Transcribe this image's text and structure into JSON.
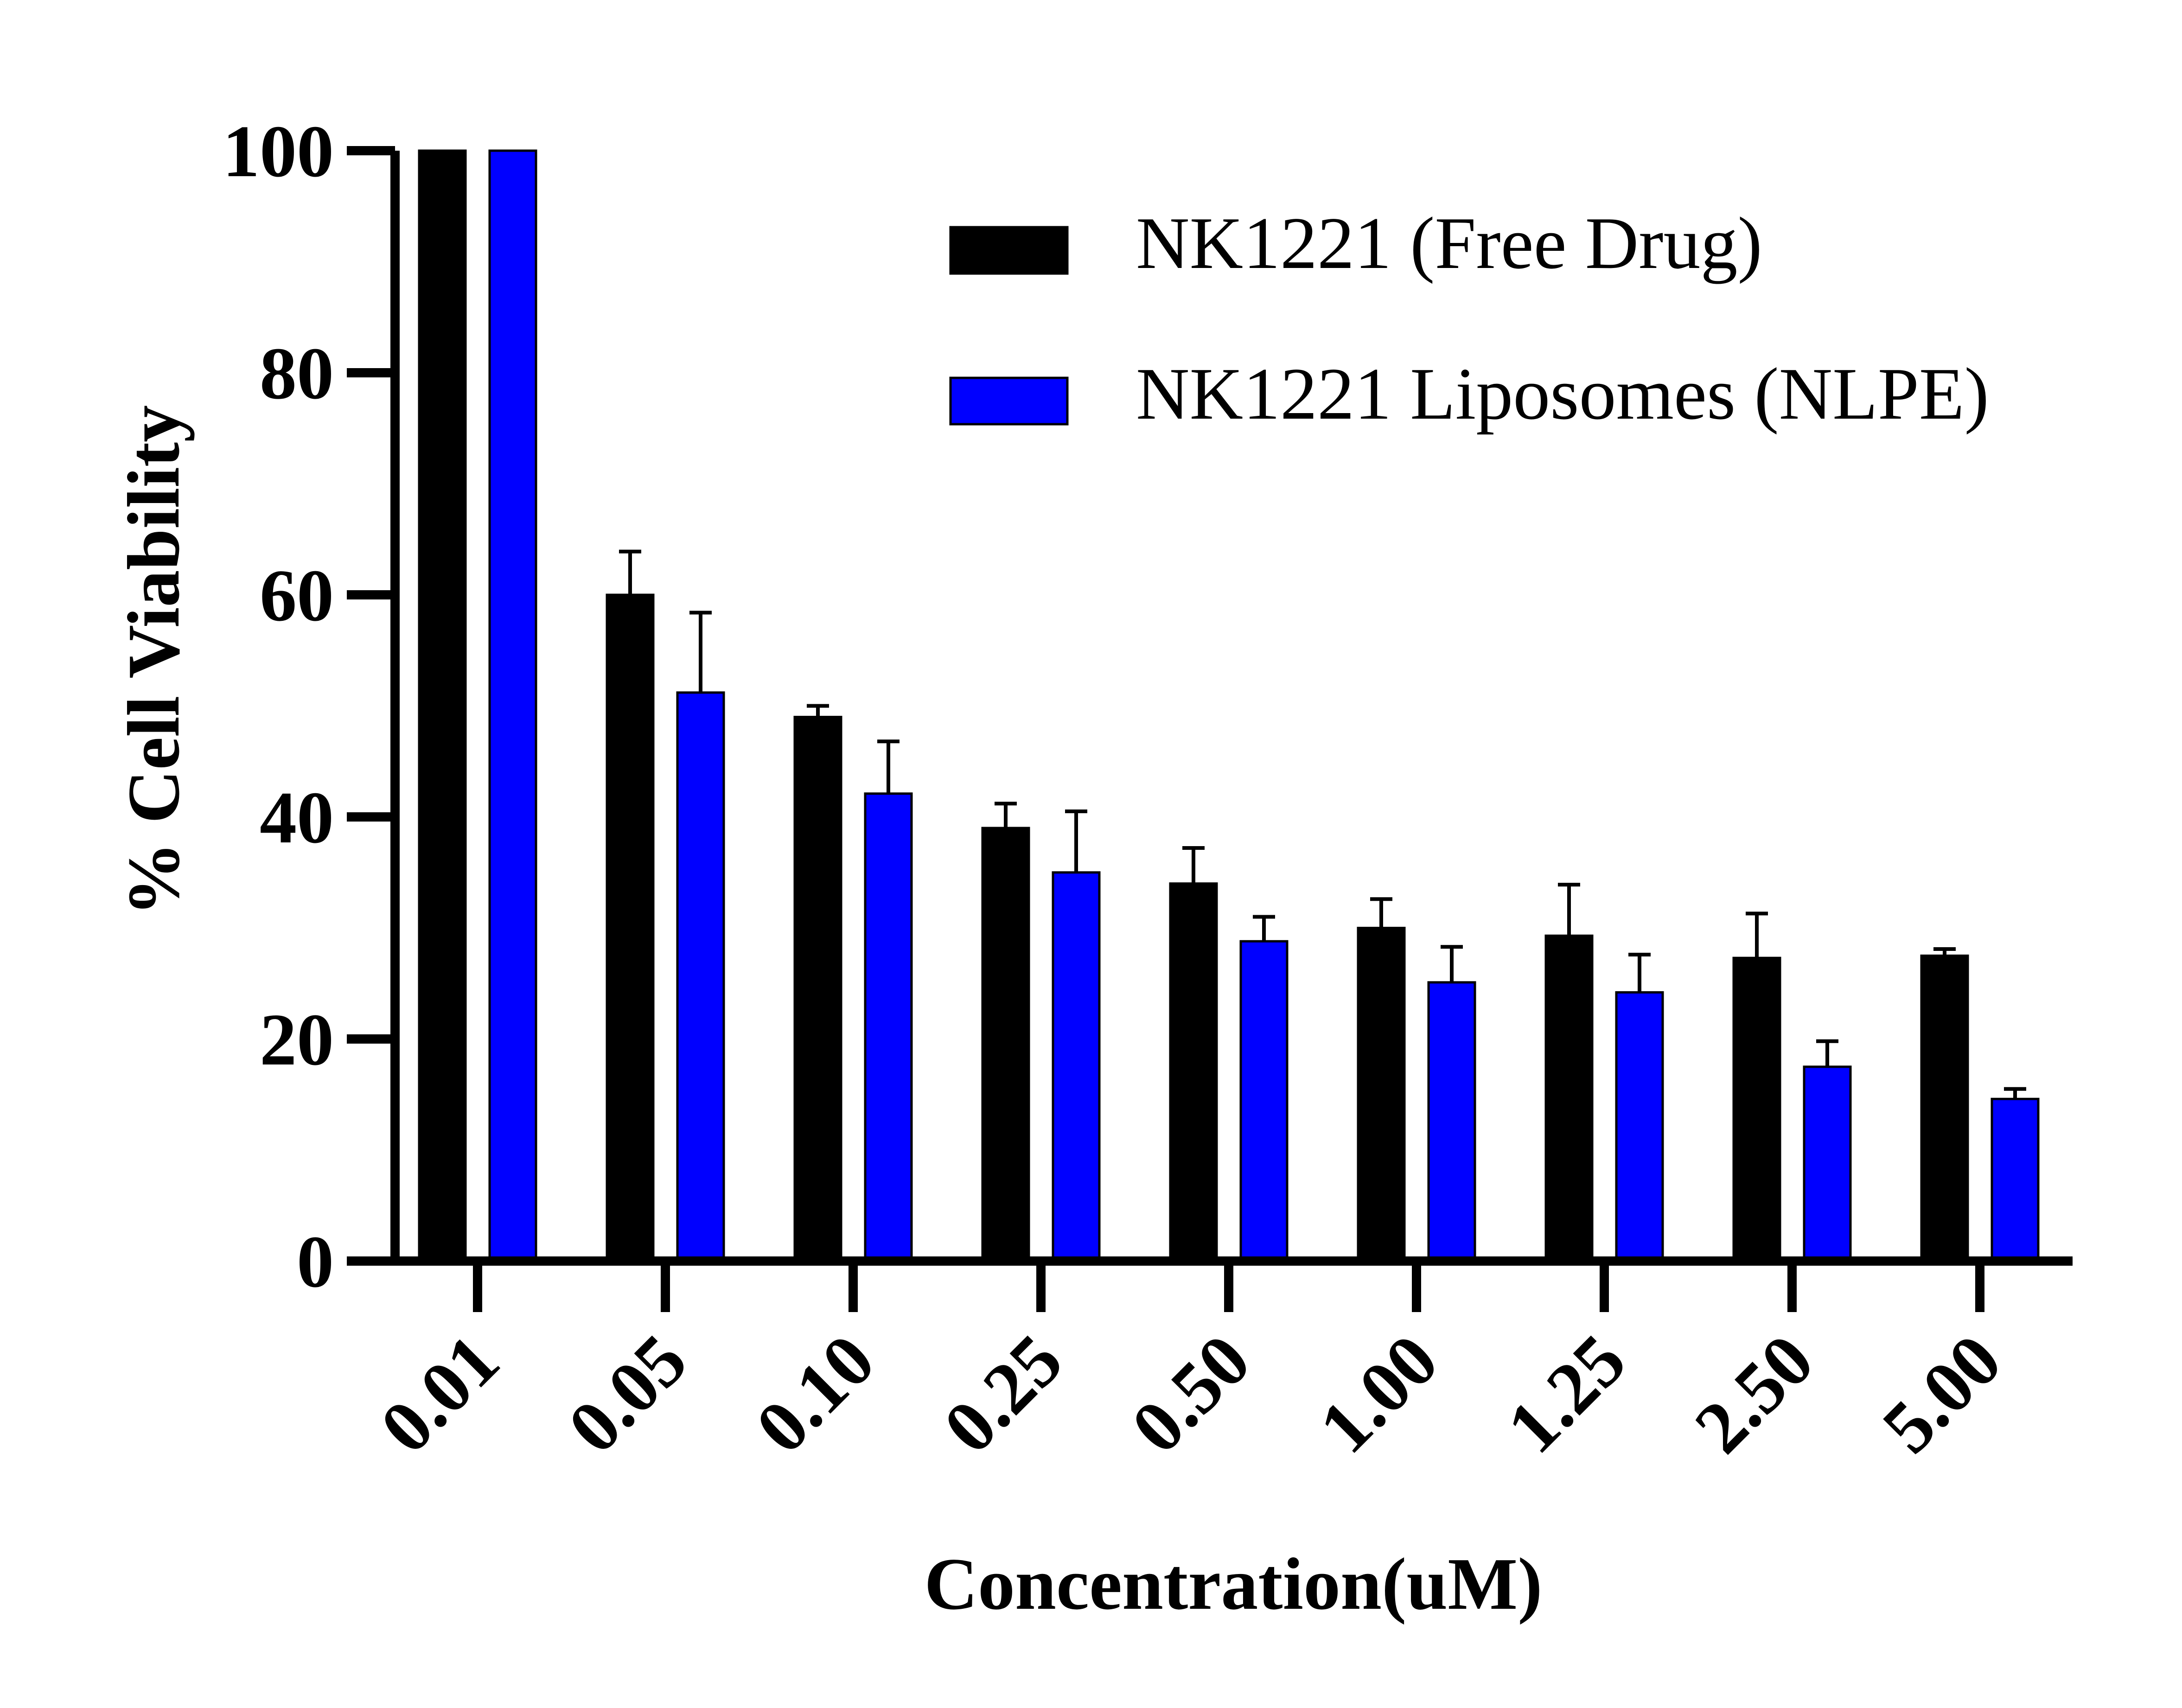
{
  "chart_data": {
    "type": "bar",
    "categories": [
      "0.01",
      "0.05",
      "0.10",
      "0.25",
      "0.50",
      "1.00",
      "1.25",
      "2.50",
      "5.00"
    ],
    "series": [
      {
        "name": "NK1221 (Free Drug)",
        "values": [
          100,
          60,
          49,
          39,
          34,
          30,
          29.3,
          27.3,
          27.5
        ],
        "errors": [
          0,
          3.9,
          1.0,
          2.2,
          3.2,
          2.6,
          4.6,
          4.0,
          0.6
        ],
        "color": "#000000"
      },
      {
        "name": "NK1221 Liposomes (NLPE)",
        "values": [
          100,
          51.2,
          42.1,
          35.0,
          28.8,
          25.1,
          24.2,
          17.5,
          14.6
        ],
        "errors": [
          0,
          7.2,
          4.7,
          5.5,
          2.2,
          3.2,
          3.4,
          2.3,
          0.9
        ],
        "color": "#0000ff"
      }
    ],
    "xlabel": "Concentration(uM)",
    "ylabel": "% Cell Viability",
    "ylim": [
      0,
      100
    ],
    "yticks": [
      0,
      20,
      40,
      60,
      80,
      100
    ],
    "legend_position": "top-right",
    "grid": false
  }
}
